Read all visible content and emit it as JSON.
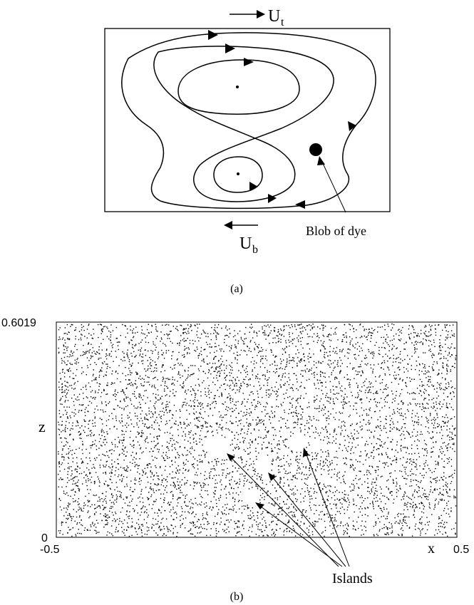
{
  "figure_a": {
    "top_wall_label": "U",
    "top_wall_subscript": "t",
    "bottom_wall_label": "U",
    "bottom_wall_subscript": "b",
    "blob_label": "Blob of dye",
    "caption": "(a)"
  },
  "figure_b": {
    "y_axis_label": "z",
    "y_top_tick": "0.6019",
    "y_bottom_tick": "0",
    "x_axis_label": "x",
    "x_left_tick": "-0.5",
    "x_right_tick": "0.5",
    "islands_label": "Islands",
    "caption": "(b)"
  },
  "chart_data": {
    "type": "scatter",
    "x_range": [
      -0.5,
      0.5
    ],
    "z_range": [
      0,
      0.6019
    ],
    "xlabel": "x",
    "ylabel": "z",
    "annotations": [
      "Islands"
    ]
  }
}
